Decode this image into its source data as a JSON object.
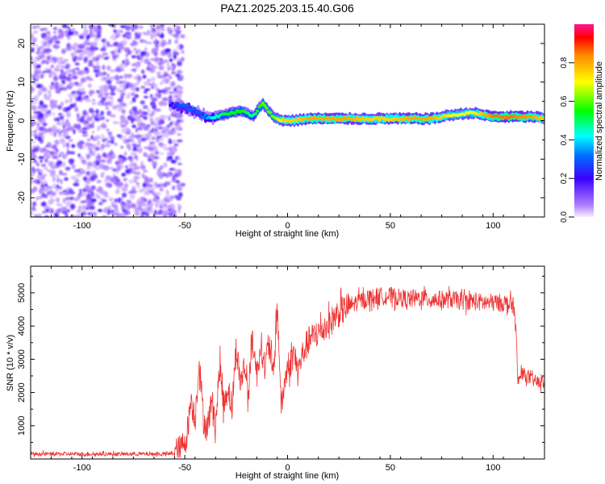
{
  "figure": {
    "title": "PAZ1.2025.203.15.40.G06"
  },
  "chart_data": [
    {
      "type": "heatmap",
      "xlabel": "Height of straight line (km)",
      "ylabel": "Frequency (Hz)",
      "xlim": [
        -125,
        125
      ],
      "ylim": [
        -25,
        25
      ],
      "x_ticks": [
        -100,
        -50,
        0,
        50,
        100
      ],
      "y_ticks": [
        -20,
        -10,
        0,
        10,
        20
      ],
      "colorbar": {
        "label": "Normalized spectral amplitude",
        "range": [
          0,
          1
        ],
        "ticks": [
          "0.0",
          "0.2",
          "0.4",
          "0.6",
          "0.8"
        ],
        "tick_values": [
          0,
          0.2,
          0.4,
          0.6,
          0.8
        ],
        "colormap": "rainbow",
        "colors": [
          "#f8f0ff",
          "#8a2be2",
          "#0000ff",
          "#00ffff",
          "#00ff00",
          "#ffff00",
          "#ff8c00",
          "#ff0000",
          "#ff1493"
        ]
      },
      "noise_region_x": [
        -125,
        -55
      ],
      "ridge": {
        "x": [
          -57,
          -52,
          -47,
          -42,
          -37,
          -32,
          -27,
          -22,
          -17,
          -12,
          -7,
          -2,
          3,
          10,
          20,
          30,
          40,
          50,
          60,
          70,
          80,
          90,
          100,
          110,
          120,
          125
        ],
        "frequency": [
          4,
          3.5,
          3,
          1.5,
          0.5,
          1.5,
          2,
          2.5,
          1,
          4.5,
          1,
          0,
          0,
          0.5,
          0.5,
          0.5,
          0.5,
          0.5,
          0.5,
          0.5,
          1.5,
          2,
          1,
          1,
          1,
          0.5
        ],
        "amplitude": [
          0.2,
          0.3,
          0.3,
          0.3,
          0.4,
          0.5,
          0.55,
          0.55,
          0.45,
          0.6,
          0.6,
          0.75,
          0.75,
          0.8,
          0.8,
          0.8,
          0.75,
          0.75,
          0.8,
          0.8,
          0.7,
          0.7,
          0.85,
          0.85,
          0.8,
          0.75
        ]
      }
    },
    {
      "type": "line",
      "xlabel": "Height of straight line (km)",
      "ylabel": "SNR (10 * v/v)",
      "xlim": [
        -125,
        125
      ],
      "ylim": [
        0,
        5800
      ],
      "x_ticks": [
        -100,
        -50,
        0,
        50,
        100
      ],
      "y_ticks": [
        1000,
        2000,
        3000,
        4000,
        5000
      ],
      "series": [
        {
          "color": "#ee3333",
          "x": [
            -125,
            -100,
            -75,
            -58,
            -55,
            -52,
            -49,
            -47,
            -45,
            -43,
            -41,
            -39,
            -37,
            -35,
            -33,
            -31,
            -29,
            -27,
            -25,
            -23,
            -21,
            -19,
            -17,
            -15,
            -13,
            -11,
            -9,
            -7,
            -5,
            -3,
            -1,
            1,
            3,
            5,
            7,
            9,
            11,
            13,
            15,
            17,
            19,
            21,
            23,
            25,
            30,
            35,
            40,
            45,
            50,
            55,
            60,
            65,
            70,
            75,
            80,
            85,
            90,
            95,
            100,
            105,
            108,
            110,
            111,
            112,
            114,
            118,
            122,
            125
          ],
          "values": [
            150,
            150,
            150,
            150,
            180,
            300,
            700,
            1800,
            1200,
            3000,
            1200,
            900,
            1800,
            1100,
            2800,
            1600,
            2200,
            1500,
            3400,
            2300,
            2800,
            2000,
            3700,
            2500,
            3500,
            2700,
            3600,
            2400,
            4600,
            1500,
            2500,
            2800,
            3200,
            2600,
            3100,
            3400,
            3600,
            3700,
            3800,
            3900,
            4000,
            4100,
            4300,
            4400,
            4600,
            4750,
            4850,
            4900,
            4900,
            4850,
            4800,
            4850,
            4800,
            4800,
            4800,
            4750,
            4750,
            4700,
            4700,
            4700,
            4650,
            4600,
            4000,
            2300,
            2600,
            2400,
            2300,
            2300
          ],
          "noise_amplitude": 500
        }
      ]
    }
  ]
}
